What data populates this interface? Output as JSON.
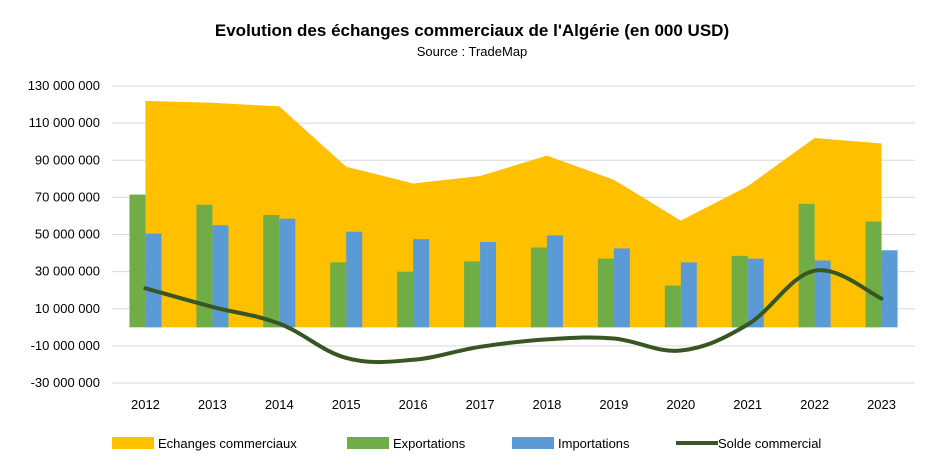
{
  "chart_data": {
    "type": "bar",
    "title": "Evolution des échanges commerciaux de l'Algérie  (en 000 USD)",
    "subtitle": "Source : TradeMap",
    "categories": [
      "2012",
      "2013",
      "2014",
      "2015",
      "2016",
      "2017",
      "2018",
      "2019",
      "2020",
      "2021",
      "2022",
      "2023"
    ],
    "ylim": [
      -30000000,
      130000000
    ],
    "yticks": [
      -30000000,
      -10000000,
      10000000,
      30000000,
      50000000,
      70000000,
      90000000,
      110000000,
      130000000
    ],
    "ytick_labels": [
      "-30 000 000",
      "-10 000 000",
      "10 000 000",
      "30 000 000",
      "50 000 000",
      "70 000 000",
      "90 000 000",
      "110 000 000",
      "130 000 000"
    ],
    "grid": true,
    "legend_position": "bottom",
    "series": [
      {
        "name": "Echanges commerciaux",
        "kind": "area",
        "color": "#FFC000",
        "values": [
          122000000,
          121000000,
          119000000,
          86500000,
          77500000,
          81500000,
          92500000,
          79500000,
          57500000,
          76000000,
          102000000,
          99000000
        ]
      },
      {
        "name": "Exportations",
        "kind": "bar",
        "color": "#70AD47",
        "values": [
          71500000,
          66000000,
          60500000,
          35000000,
          30000000,
          35500000,
          43000000,
          37000000,
          22500000,
          38500000,
          66500000,
          57000000
        ]
      },
      {
        "name": "Importations",
        "kind": "bar",
        "color": "#5B9BD5",
        "values": [
          50500000,
          55000000,
          58500000,
          51500000,
          47500000,
          46000000,
          49500000,
          42500000,
          35000000,
          37000000,
          36000000,
          41500000
        ]
      },
      {
        "name": "Solde commercial",
        "kind": "line",
        "color": "#375623",
        "values": [
          21000000,
          11000000,
          2000000,
          -16500000,
          -17500000,
          -10500000,
          -6500000,
          -6000000,
          -12500000,
          1500000,
          30500000,
          15500000
        ]
      }
    ]
  }
}
